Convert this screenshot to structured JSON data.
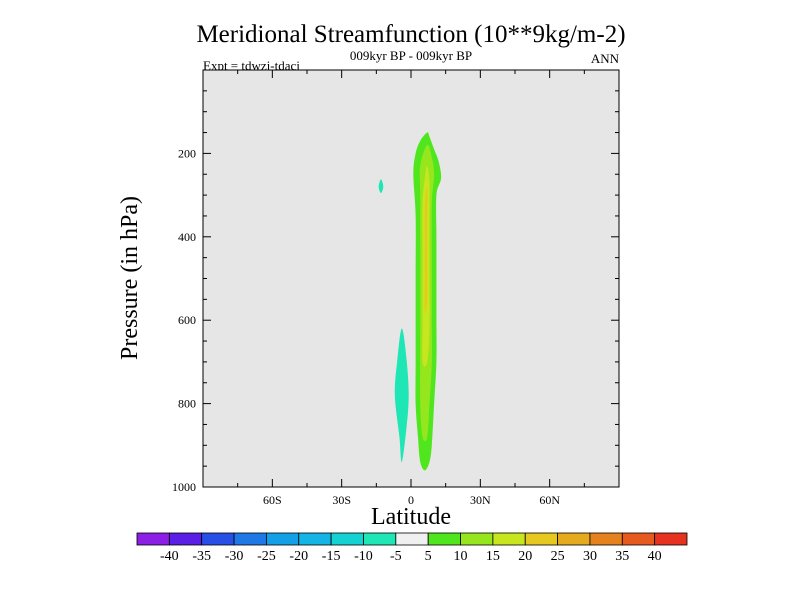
{
  "chart_data": {
    "type": "contour",
    "title": "Meridional Streamfunction (10**9kg/m-2)",
    "subtitle_center": "009kyr BP - 009kyr BP",
    "subtitle_left": "Expt = tdwzj-tdacj",
    "subtitle_right": "ANN",
    "xlabel": "Latitude",
    "ylabel": "Pressure (in hPa)",
    "xlim": [
      -90,
      90
    ],
    "ylim": [
      1000,
      0
    ],
    "x_ticks": [
      {
        "value": -60,
        "label": "60S"
      },
      {
        "value": -30,
        "label": "30S"
      },
      {
        "value": 0,
        "label": "0"
      },
      {
        "value": 30,
        "label": "30N"
      },
      {
        "value": 60,
        "label": "60N"
      }
    ],
    "y_ticks": [
      {
        "value": 200,
        "label": "200"
      },
      {
        "value": 400,
        "label": "400"
      },
      {
        "value": 600,
        "label": "600"
      },
      {
        "value": 800,
        "label": "800"
      },
      {
        "value": 1000,
        "label": "1000"
      }
    ],
    "background_color": "#e6e6e6",
    "colorbar": {
      "labels": [
        "-40",
        "-35",
        "-30",
        "-25",
        "-20",
        "-15",
        "-10",
        "-5",
        "5",
        "10",
        "15",
        "20",
        "25",
        "30",
        "35",
        "40"
      ],
      "colors": [
        "#8c1ee6",
        "#5a1ee6",
        "#2850e6",
        "#1e78e6",
        "#14a0e6",
        "#14b4e6",
        "#14d2d2",
        "#1ee6b4",
        "#f0f0f0",
        "#50e61e",
        "#96e61e",
        "#c8e61e",
        "#e6c81e",
        "#e6aa1e",
        "#e6821e",
        "#e65a1e",
        "#e6321e"
      ]
    },
    "features": [
      {
        "name": "positive-cell-10",
        "value": 10,
        "color": "#50e61e",
        "outline": [
          [
            7,
            150
          ],
          [
            8,
            160
          ],
          [
            10,
            190
          ],
          [
            12,
            220
          ],
          [
            13,
            260
          ],
          [
            11,
            300
          ],
          [
            11,
            400
          ],
          [
            11,
            500
          ],
          [
            11,
            600
          ],
          [
            11,
            700
          ],
          [
            10,
            800
          ],
          [
            9,
            900
          ],
          [
            8,
            940
          ],
          [
            6,
            960
          ],
          [
            4,
            940
          ],
          [
            3,
            880
          ],
          [
            2,
            800
          ],
          [
            2,
            700
          ],
          [
            2,
            500
          ],
          [
            2,
            350
          ],
          [
            1,
            250
          ],
          [
            2,
            200
          ],
          [
            4,
            170
          ]
        ]
      },
      {
        "name": "positive-cell-15",
        "value": 15,
        "color": "#96e61e",
        "outline": [
          [
            7,
            180
          ],
          [
            9,
            210
          ],
          [
            10,
            250
          ],
          [
            9,
            320
          ],
          [
            9,
            450
          ],
          [
            9,
            600
          ],
          [
            9,
            700
          ],
          [
            8,
            800
          ],
          [
            7,
            880
          ],
          [
            5,
            880
          ],
          [
            4,
            800
          ],
          [
            4,
            650
          ],
          [
            4,
            450
          ],
          [
            4,
            300
          ],
          [
            4,
            230
          ]
        ]
      },
      {
        "name": "positive-cell-20",
        "value": 20,
        "color": "#c8e61e",
        "outline": [
          [
            7,
            230
          ],
          [
            8,
            270
          ],
          [
            8,
            350
          ],
          [
            8,
            500
          ],
          [
            8,
            620
          ],
          [
            7,
            700
          ],
          [
            5,
            700
          ],
          [
            5,
            600
          ],
          [
            5,
            450
          ],
          [
            5,
            320
          ],
          [
            6,
            260
          ]
        ]
      },
      {
        "name": "positive-cell-25",
        "value": 25,
        "color": "#e6c81e",
        "outline": [
          [
            7,
            280
          ],
          [
            7,
            350
          ],
          [
            7,
            450
          ],
          [
            7,
            550
          ],
          [
            6,
            580
          ],
          [
            6,
            450
          ],
          [
            6,
            330
          ]
        ]
      },
      {
        "name": "negative-cell-low",
        "value": -5,
        "color": "#1ee6b4",
        "outline": [
          [
            -4,
            620
          ],
          [
            -2,
            690
          ],
          [
            -1,
            780
          ],
          [
            -2,
            860
          ],
          [
            -4,
            940
          ],
          [
            -5,
            880
          ],
          [
            -7,
            780
          ],
          [
            -6,
            700
          ]
        ]
      },
      {
        "name": "negative-cell-upper",
        "value": -5,
        "color": "#1ee6b4",
        "outline": [
          [
            -13,
            262
          ],
          [
            -12,
            280
          ],
          [
            -13,
            295
          ],
          [
            -14,
            280
          ]
        ]
      }
    ]
  }
}
